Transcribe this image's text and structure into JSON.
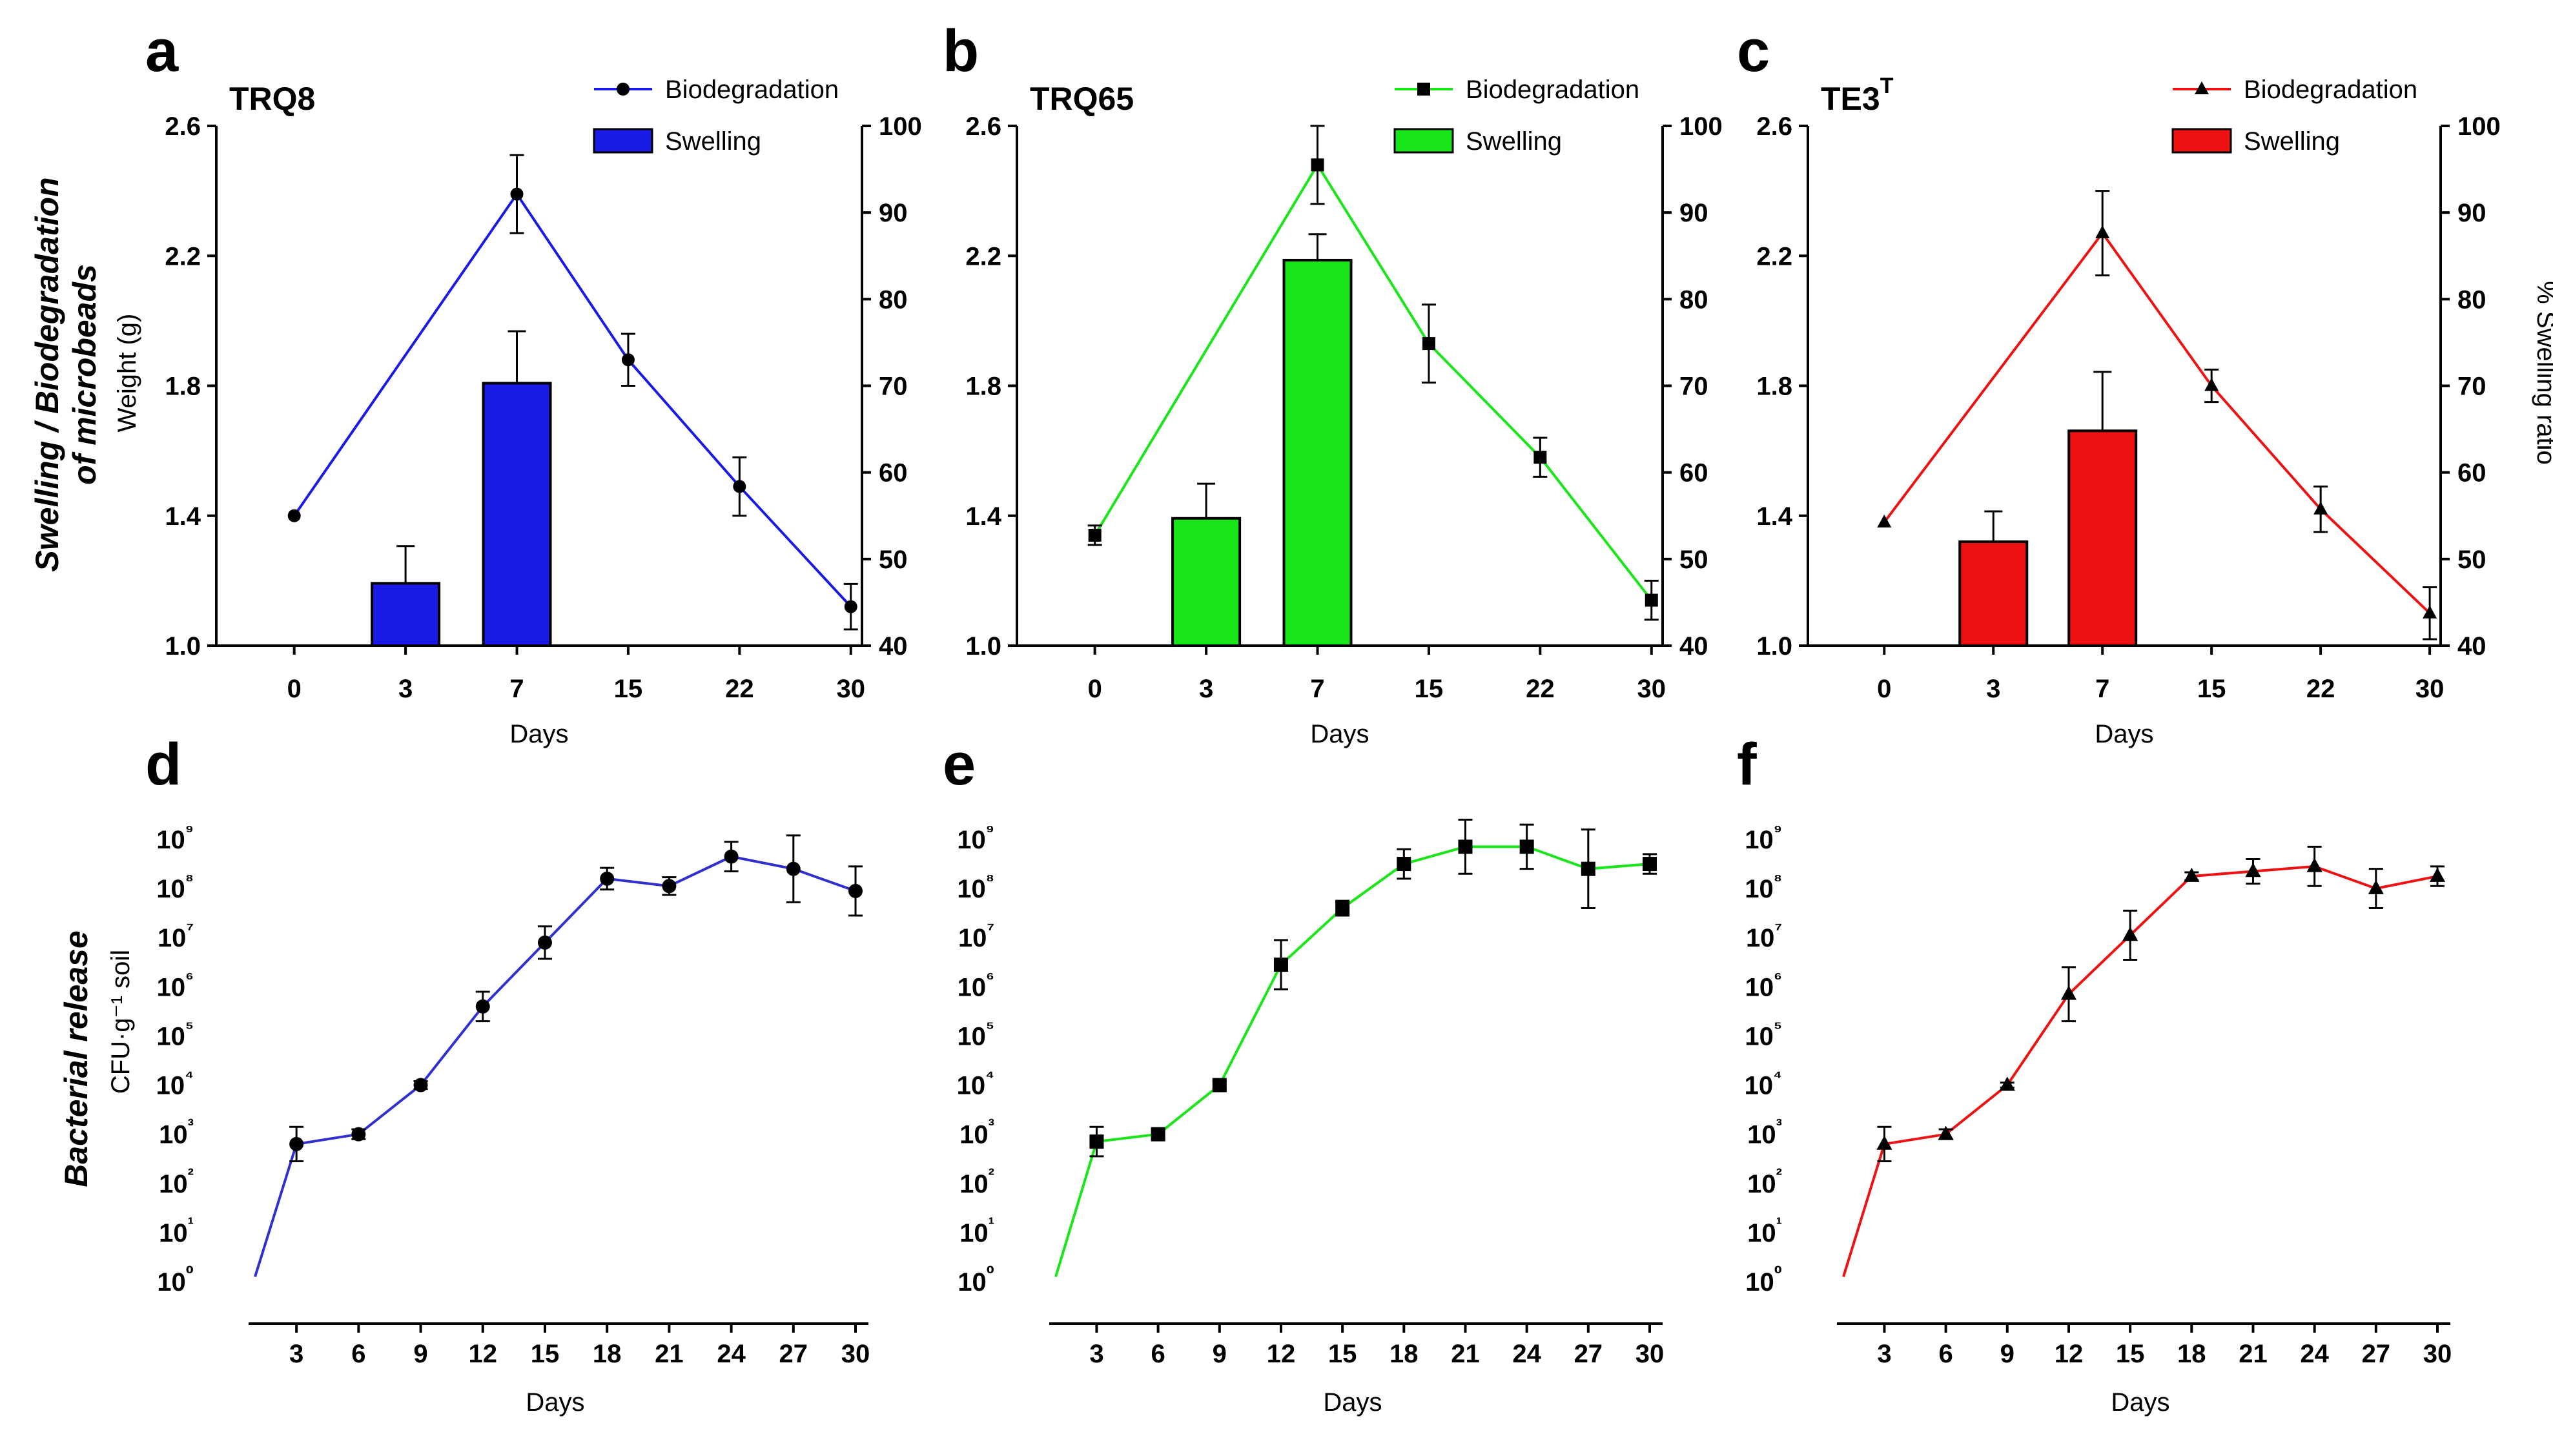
{
  "figure": {
    "row_titles": {
      "top": [
        "Swelling / Biodegradation",
        "of microbeads"
      ],
      "bottom": "Bacterial release"
    }
  },
  "chart_data": [
    {
      "panel": "a",
      "type": "bar+line",
      "title": "TRQ8",
      "color": "#1a1ae6",
      "line_marker": "circle",
      "xlabel": "Days",
      "ylabel_left": "Weight (g)",
      "ylabel_right": "",
      "categories": [
        "0",
        "3",
        "7",
        "15",
        "22",
        "30"
      ],
      "ylim_left": [
        1.0,
        2.6
      ],
      "yticks_left": [
        "1.0",
        "1.4",
        "1.8",
        "2.2",
        "2.6"
      ],
      "ylim_right": [
        40,
        100
      ],
      "yticks_right": [
        "40",
        "50",
        "60",
        "70",
        "80",
        "90",
        "100"
      ],
      "legend": [
        "Biodegradation",
        "Swelling"
      ],
      "series": [
        {
          "name": "Biodegradation",
          "axis": "left",
          "values": [
            1.4,
            null,
            2.39,
            1.88,
            1.49,
            1.12
          ],
          "errors": [
            0.0,
            null,
            0.12,
            0.08,
            0.09,
            0.07
          ]
        },
        {
          "name": "Swelling",
          "axis": "right",
          "values": [
            null,
            47.2,
            70.3,
            null,
            null,
            null
          ],
          "errors": [
            null,
            4.3,
            6.0,
            null,
            null,
            null
          ]
        }
      ]
    },
    {
      "panel": "b",
      "type": "bar+line",
      "title": "TRQ65",
      "color": "#19e619",
      "line_marker": "square",
      "xlabel": "Days",
      "ylabel_left": "",
      "ylabel_right": "",
      "categories": [
        "0",
        "3",
        "7",
        "15",
        "22",
        "30"
      ],
      "ylim_left": [
        1.0,
        2.6
      ],
      "yticks_left": [
        "1.0",
        "1.4",
        "1.8",
        "2.2",
        "2.6"
      ],
      "ylim_right": [
        40,
        100
      ],
      "yticks_right": [
        "40",
        "50",
        "60",
        "70",
        "80",
        "90",
        "100"
      ],
      "legend": [
        "Biodegradation",
        "Swelling"
      ],
      "series": [
        {
          "name": "Biodegradation",
          "axis": "left",
          "values": [
            1.34,
            null,
            2.48,
            1.93,
            1.58,
            1.14
          ],
          "errors": [
            0.03,
            null,
            0.12,
            0.12,
            0.06,
            0.06
          ]
        },
        {
          "name": "Swelling",
          "axis": "right",
          "values": [
            null,
            54.7,
            84.5,
            null,
            null,
            null
          ],
          "errors": [
            null,
            4.0,
            3.0,
            null,
            null,
            null
          ]
        }
      ]
    },
    {
      "panel": "c",
      "type": "bar+line",
      "title": "TE3",
      "title_superscript": "T",
      "color": "#ee1111",
      "line_marker": "triangle",
      "xlabel": "Days",
      "ylabel_left": "",
      "ylabel_right": "% Swelling ratio",
      "categories": [
        "0",
        "3",
        "7",
        "15",
        "22",
        "30"
      ],
      "ylim_left": [
        1.0,
        2.6
      ],
      "yticks_left": [
        "1.0",
        "1.4",
        "1.8",
        "2.2",
        "2.6"
      ],
      "ylim_right": [
        40,
        100
      ],
      "yticks_right": [
        "40",
        "50",
        "60",
        "70",
        "80",
        "90",
        "100"
      ],
      "legend": [
        "Biodegradation",
        "Swelling"
      ],
      "series": [
        {
          "name": "Biodegradation",
          "axis": "left",
          "values": [
            1.38,
            null,
            2.27,
            1.8,
            1.42,
            1.1
          ],
          "errors": [
            0.0,
            null,
            0.13,
            0.05,
            0.07,
            0.08
          ]
        },
        {
          "name": "Swelling",
          "axis": "right",
          "values": [
            null,
            52.0,
            64.8,
            null,
            null,
            null
          ],
          "errors": [
            null,
            3.5,
            6.8,
            null,
            null,
            null
          ]
        }
      ]
    },
    {
      "panel": "d",
      "type": "line",
      "yscale": "log",
      "color": "#3030d0",
      "line_marker": "circle",
      "xlabel": "Days",
      "ylabel": "CFU·g⁻¹ soil",
      "x": [
        1,
        3,
        6,
        9,
        12,
        15,
        18,
        21,
        24,
        27,
        30
      ],
      "xticks": [
        "3",
        "6",
        "9",
        "12",
        "15",
        "18",
        "21",
        "24",
        "27",
        "30"
      ],
      "ylim_exp": [
        0,
        9
      ],
      "ytick_labels": [
        "10⁰",
        "10¹",
        "10²",
        "10³",
        "10⁴",
        "10⁵",
        "10⁶",
        "10⁷",
        "10⁸",
        "10⁹"
      ],
      "values_log10": [
        0.1,
        2.8,
        3.0,
        4.0,
        5.6,
        6.9,
        8.2,
        8.05,
        8.65,
        8.4,
        7.95
      ],
      "errors_log10": [
        null,
        0.35,
        0.1,
        0.08,
        0.3,
        0.33,
        0.22,
        0.18,
        0.3,
        0.68,
        0.5
      ],
      "markers": [
        false,
        true,
        true,
        true,
        true,
        true,
        true,
        true,
        true,
        true,
        true
      ]
    },
    {
      "panel": "e",
      "type": "line",
      "yscale": "log",
      "color": "#19e619",
      "line_marker": "square",
      "xlabel": "Days",
      "ylabel": "",
      "x": [
        1,
        3,
        6,
        9,
        12,
        15,
        18,
        21,
        24,
        27,
        30
      ],
      "xticks": [
        "3",
        "6",
        "9",
        "12",
        "15",
        "18",
        "21",
        "24",
        "27",
        "30"
      ],
      "ylim_exp": [
        0,
        9
      ],
      "ytick_labels": [
        "10⁰",
        "10¹",
        "10²",
        "10³",
        "10⁴",
        "10⁵",
        "10⁶",
        "10⁷",
        "10⁸",
        "10⁹"
      ],
      "values_log10": [
        0.1,
        2.85,
        3.0,
        4.0,
        6.45,
        7.6,
        8.5,
        8.85,
        8.85,
        8.4,
        8.5
      ],
      "errors_log10": [
        null,
        0.3,
        0.1,
        0.08,
        0.5,
        0.15,
        0.3,
        0.55,
        0.45,
        0.8,
        0.2
      ],
      "markers": [
        false,
        true,
        true,
        true,
        true,
        true,
        true,
        true,
        true,
        true,
        true
      ]
    },
    {
      "panel": "f",
      "type": "line",
      "yscale": "log",
      "color": "#ee1111",
      "line_marker": "triangle",
      "xlabel": "Days",
      "ylabel": "",
      "x": [
        1,
        3,
        6,
        9,
        12,
        15,
        18,
        21,
        24,
        27,
        30
      ],
      "xticks": [
        "3",
        "6",
        "9",
        "12",
        "15",
        "18",
        "21",
        "24",
        "27",
        "30"
      ],
      "ylim_exp": [
        0,
        9
      ],
      "ytick_labels": [
        "10⁰",
        "10¹",
        "10²",
        "10³",
        "10⁴",
        "10⁵",
        "10⁶",
        "10⁷",
        "10⁸",
        "10⁹"
      ],
      "values_log10": [
        0.1,
        2.8,
        3.0,
        4.0,
        5.85,
        7.05,
        8.25,
        8.35,
        8.45,
        8.0,
        8.25
      ],
      "errors_log10": [
        null,
        0.35,
        0.1,
        0.05,
        0.55,
        0.5,
        0.08,
        0.25,
        0.4,
        0.4,
        0.2
      ],
      "markers": [
        false,
        true,
        true,
        true,
        true,
        true,
        true,
        true,
        true,
        true,
        true
      ]
    }
  ]
}
